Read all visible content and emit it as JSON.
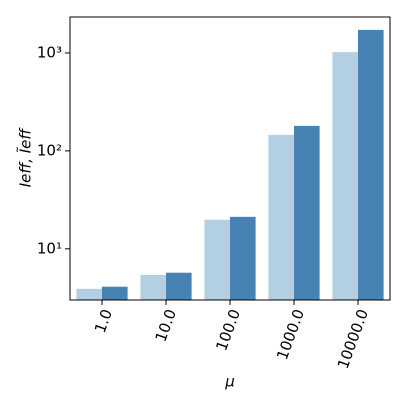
{
  "chart_data": {
    "type": "bar",
    "xlabel": "μ",
    "ylabel": "Ieff, Ĩeff",
    "categories": [
      "1.0",
      "10.0",
      "100.0",
      "1000.0",
      "10000.0"
    ],
    "series": [
      {
        "color": "#b3cfe3",
        "values": [
          3.9,
          5.4,
          19.8,
          146,
          1020
        ]
      },
      {
        "color": "#4682b4",
        "values": [
          4.1,
          5.7,
          21.2,
          180,
          1720
        ]
      }
    ],
    "ylim": [
      3,
      2330
    ],
    "yticks": [
      {
        "value": 10,
        "label": "10¹"
      },
      {
        "value": 100,
        "label": "10²"
      },
      {
        "value": 1000,
        "label": "10³"
      }
    ],
    "log_y": true
  }
}
